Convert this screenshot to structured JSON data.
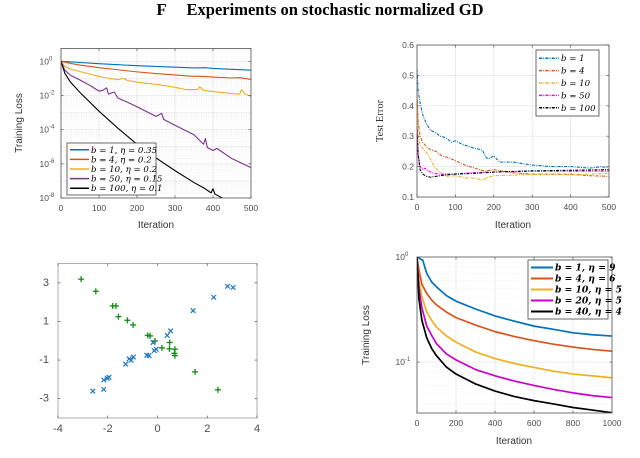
{
  "page": {
    "section_label": "F",
    "section_title": "Experiments on stochastic normalized GD"
  },
  "chart_data": [
    {
      "id": "train-loss-1",
      "type": "line",
      "title": "",
      "xlabel": "Iteration",
      "ylabel": "Training Loss",
      "yscale": "log",
      "xlim": [
        0,
        500
      ],
      "ylim": [
        1e-08,
        5.6
      ],
      "xticks": [
        0,
        100,
        200,
        300,
        400,
        500
      ],
      "xtick_labels": [
        "0",
        "100",
        "200",
        "300",
        "400",
        "500"
      ],
      "yticks": [
        1e-08,
        1e-06,
        0.0001,
        0.01,
        1
      ],
      "ytick_labels": [
        [
          "10",
          "-8"
        ],
        [
          "10",
          "-6"
        ],
        [
          "10",
          "-4"
        ],
        [
          "10",
          "-2"
        ],
        [
          "10",
          "0"
        ]
      ],
      "grid": true,
      "legend_position": "bottom-left",
      "series": [
        {
          "name": "b = 1, η = 0.35",
          "color": "#0072bd",
          "x": [
            0,
            50,
            100,
            150,
            200,
            250,
            300,
            350,
            380,
            400,
            450,
            500
          ],
          "y": [
            1.0,
            0.85,
            0.72,
            0.63,
            0.55,
            0.5,
            0.45,
            0.41,
            0.42,
            0.38,
            0.34,
            0.3
          ]
        },
        {
          "name": "b = 4, η = 0.2",
          "color": "#d95319",
          "x": [
            0,
            25,
            50,
            100,
            150,
            200,
            250,
            300,
            350,
            365,
            400,
            450,
            470,
            500
          ],
          "y": [
            1.0,
            0.75,
            0.6,
            0.42,
            0.32,
            0.24,
            0.19,
            0.16,
            0.13,
            0.135,
            0.12,
            0.105,
            0.11,
            0.087
          ]
        },
        {
          "name": "b = 10, η = 0.2",
          "color": "#edb120",
          "x": [
            0,
            10,
            25,
            50,
            75,
            100,
            125,
            150,
            165,
            175,
            200,
            250,
            300,
            330,
            360,
            365,
            375,
            400,
            450,
            470,
            475,
            485,
            500
          ],
          "y": [
            1.0,
            0.5,
            0.35,
            0.25,
            0.18,
            0.13,
            0.1,
            0.085,
            0.1,
            0.075,
            0.06,
            0.045,
            0.03,
            0.022,
            0.022,
            0.032,
            0.02,
            0.017,
            0.013,
            0.012,
            0.022,
            0.012,
            0.009
          ]
        },
        {
          "name": "b = 50, η = 0.15",
          "color": "#7e2f8e",
          "x": [
            0,
            10,
            25,
            50,
            75,
            100,
            110,
            120,
            125,
            140,
            150,
            175,
            200,
            250,
            265,
            270,
            300,
            350,
            375,
            380,
            385,
            400,
            410,
            450,
            500
          ],
          "y": [
            1.0,
            0.3,
            0.15,
            0.08,
            0.04,
            0.018,
            0.02,
            0.028,
            0.012,
            0.016,
            0.007,
            0.004,
            0.0022,
            0.0006,
            0.0009,
            0.0004,
            0.00018,
            5e-05,
            1.4e-05,
            3e-05,
            9e-06,
            6e-06,
            8e-06,
            2e-06,
            6e-07
          ]
        },
        {
          "name": "b = 100, η = 0.1",
          "color": "#000000",
          "x": [
            0,
            10,
            25,
            50,
            100,
            150,
            200,
            250,
            300,
            350,
            375,
            395,
            400,
            405,
            450,
            500
          ],
          "y": [
            1.0,
            0.2,
            0.06,
            0.015,
            0.0012,
            0.00012,
            1.4e-05,
            2.2e-06,
            4e-07,
            8e-08,
            4e-08,
            2e-08,
            3.5e-08,
            1.7e-08,
            5e-09,
            1e-09
          ]
        }
      ]
    },
    {
      "id": "test-error",
      "type": "line",
      "title": "",
      "xlabel": "Iteration",
      "ylabel": "Test Error",
      "yscale": "linear",
      "xlim": [
        0,
        500
      ],
      "ylim": [
        0.1,
        0.6
      ],
      "xticks": [
        0,
        100,
        200,
        300,
        400,
        500
      ],
      "xtick_labels": [
        "0",
        "100",
        "200",
        "300",
        "400",
        "500"
      ],
      "yticks": [
        0.1,
        0.2,
        0.3,
        0.4,
        0.5,
        0.6
      ],
      "ytick_labels": [
        "0.1",
        "0.2",
        "0.3",
        "0.4",
        "0.5",
        "0.6"
      ],
      "grid": true,
      "line_style": "dash-dot",
      "legend_position": "top-right",
      "series": [
        {
          "name": "b = 1",
          "color": "#0072bd",
          "x": [
            0,
            3,
            8,
            15,
            25,
            35,
            50,
            60,
            75,
            90,
            100,
            115,
            125,
            150,
            170,
            180,
            185,
            200,
            215,
            230,
            250,
            275,
            300,
            350,
            400,
            450,
            480,
            500
          ],
          "y": [
            0.52,
            0.45,
            0.41,
            0.37,
            0.34,
            0.32,
            0.31,
            0.3,
            0.295,
            0.28,
            0.285,
            0.275,
            0.27,
            0.26,
            0.255,
            0.23,
            0.225,
            0.235,
            0.215,
            0.215,
            0.215,
            0.21,
            0.205,
            0.2,
            0.2,
            0.195,
            0.2,
            0.195
          ]
        },
        {
          "name": "b = 4",
          "color": "#d95319",
          "x": [
            0,
            3,
            8,
            15,
            25,
            35,
            50,
            65,
            80,
            100,
            125,
            150,
            175,
            200,
            250,
            300,
            350,
            400,
            450,
            500
          ],
          "y": [
            0.44,
            0.35,
            0.3,
            0.28,
            0.265,
            0.255,
            0.25,
            0.235,
            0.23,
            0.22,
            0.205,
            0.195,
            0.185,
            0.19,
            0.18,
            0.175,
            0.175,
            0.175,
            0.17,
            0.168
          ]
        },
        {
          "name": "b = 10",
          "color": "#edb120",
          "x": [
            0,
            3,
            8,
            15,
            25,
            35,
            45,
            60,
            80,
            100,
            125,
            150,
            170,
            185,
            200,
            250,
            300,
            350,
            400,
            450,
            500
          ],
          "y": [
            0.43,
            0.3,
            0.27,
            0.26,
            0.245,
            0.225,
            0.2,
            0.18,
            0.168,
            0.17,
            0.163,
            0.162,
            0.156,
            0.165,
            0.17,
            0.172,
            0.175,
            0.175,
            0.173,
            0.175,
            0.178
          ]
        },
        {
          "name": "b = 50",
          "color": "#ff00ff",
          "x": [
            0,
            3,
            8,
            15,
            22,
            30,
            45,
            60,
            100,
            150,
            200,
            300,
            400,
            500
          ],
          "y": [
            0.33,
            0.24,
            0.2,
            0.19,
            0.195,
            0.185,
            0.178,
            0.175,
            0.176,
            0.18,
            0.182,
            0.185,
            0.185,
            0.185
          ]
        },
        {
          "name": "b = 100",
          "color": "#000000",
          "x": [
            0,
            3,
            8,
            15,
            25,
            35,
            50,
            70,
            100,
            150,
            200,
            250,
            300,
            400,
            500
          ],
          "y": [
            0.32,
            0.24,
            0.19,
            0.175,
            0.168,
            0.165,
            0.168,
            0.172,
            0.175,
            0.178,
            0.182,
            0.184,
            0.186,
            0.188,
            0.19
          ]
        }
      ]
    },
    {
      "id": "scatter",
      "type": "scatter",
      "title": "",
      "xlabel": "",
      "ylabel": "",
      "xlim": [
        -4,
        4
      ],
      "ylim": [
        -4,
        4
      ],
      "xticks": [
        -4,
        -2,
        0,
        2,
        4
      ],
      "xtick_labels": [
        "-4",
        "-2",
        "0",
        "2",
        "4"
      ],
      "yticks": [
        -3,
        -1,
        1,
        3
      ],
      "ytick_labels": [
        "-3",
        "-1",
        "1",
        "3"
      ],
      "grid": false,
      "series": [
        {
          "name": "class-plus",
          "marker": "+",
          "color": "#138a13",
          "x": [
            -3.07,
            -2.48,
            -1.8,
            -1.67,
            -1.57,
            -1.21,
            -0.98,
            -0.39,
            -0.3,
            -0.1,
            0.18,
            0.49,
            0.48,
            0.7,
            0.68,
            0.7,
            1.51,
            2.43
          ],
          "y": [
            3.19,
            2.56,
            1.8,
            1.8,
            1.25,
            1.06,
            0.82,
            0.28,
            0.25,
            -0.01,
            -0.37,
            -0.09,
            -0.42,
            -0.44,
            -0.65,
            -0.77,
            -1.61,
            -2.54
          ]
        },
        {
          "name": "class-x",
          "marker": "x",
          "color": "#1f77c4",
          "x": [
            -2.6,
            -2.16,
            -2.16,
            -2.02,
            -1.95,
            -1.28,
            -1.14,
            -1.06,
            -0.97,
            -0.43,
            -0.34,
            -0.13,
            -0.05,
            -0.18,
            0.39,
            0.53,
            1.43,
            2.26,
            2.82,
            3.04
          ],
          "y": [
            -2.61,
            -2.52,
            -2.03,
            -1.94,
            -1.89,
            -1.21,
            -0.94,
            -1.01,
            -0.84,
            -0.75,
            -0.77,
            -0.51,
            -0.44,
            -0.09,
            0.28,
            0.51,
            1.56,
            2.25,
            2.82,
            2.76
          ]
        }
      ]
    },
    {
      "id": "train-loss-2",
      "type": "line",
      "title": "",
      "xlabel": "Iteration",
      "ylabel": "Training Loss",
      "yscale": "log",
      "xlim": [
        0,
        1000
      ],
      "ylim": [
        0.0328,
        1
      ],
      "xticks": [
        0,
        200,
        400,
        600,
        800,
        1000
      ],
      "xtick_labels": [
        "0",
        "200",
        "400",
        "600",
        "800",
        "1000"
      ],
      "yticks": [
        0.1,
        1
      ],
      "ytick_labels": [
        [
          "10",
          "-1"
        ],
        [
          "10",
          "0"
        ]
      ],
      "grid": true,
      "legend_position": "top-right",
      "series": [
        {
          "name": "b = 1, η = 9",
          "color": "#0072bd",
          "x": [
            0,
            10,
            20,
            30,
            40,
            50,
            75,
            100,
            150,
            200,
            300,
            400,
            500,
            600,
            700,
            800,
            900,
            1000
          ],
          "y": [
            1.0,
            0.98,
            0.95,
            0.93,
            0.8,
            0.7,
            0.58,
            0.52,
            0.43,
            0.38,
            0.32,
            0.275,
            0.245,
            0.22,
            0.205,
            0.19,
            0.182,
            0.177
          ]
        },
        {
          "name": "b = 4, η = 6",
          "color": "#d95319",
          "x": [
            0,
            10,
            25,
            50,
            75,
            100,
            150,
            200,
            300,
            400,
            500,
            600,
            700,
            800,
            900,
            1000
          ],
          "y": [
            1.0,
            0.75,
            0.55,
            0.45,
            0.39,
            0.35,
            0.3,
            0.265,
            0.225,
            0.195,
            0.175,
            0.16,
            0.148,
            0.139,
            0.132,
            0.127
          ]
        },
        {
          "name": "b = 10, η = 5",
          "color": "#edb120",
          "x": [
            0,
            10,
            25,
            50,
            75,
            100,
            150,
            200,
            300,
            400,
            500,
            600,
            700,
            800,
            900,
            1000
          ],
          "y": [
            1.0,
            0.6,
            0.42,
            0.3,
            0.25,
            0.215,
            0.178,
            0.155,
            0.125,
            0.108,
            0.097,
            0.089,
            0.082,
            0.077,
            0.074,
            0.071
          ]
        },
        {
          "name": "b = 20, η = 5",
          "color": "#cc00cc",
          "x": [
            0,
            10,
            25,
            50,
            75,
            100,
            150,
            200,
            300,
            400,
            500,
            600,
            700,
            800,
            900,
            1000
          ],
          "y": [
            1.0,
            0.5,
            0.33,
            0.22,
            0.18,
            0.15,
            0.12,
            0.105,
            0.085,
            0.074,
            0.066,
            0.06,
            0.055,
            0.051,
            0.048,
            0.046
          ]
        },
        {
          "name": "b = 40, η = 4",
          "color": "#000000",
          "x": [
            0,
            10,
            25,
            50,
            75,
            100,
            150,
            200,
            300,
            400,
            500,
            600,
            700,
            800,
            900,
            1000
          ],
          "y": [
            1.0,
            0.4,
            0.25,
            0.17,
            0.135,
            0.115,
            0.09,
            0.077,
            0.062,
            0.053,
            0.047,
            0.043,
            0.04,
            0.037,
            0.035,
            0.033
          ]
        }
      ]
    }
  ]
}
